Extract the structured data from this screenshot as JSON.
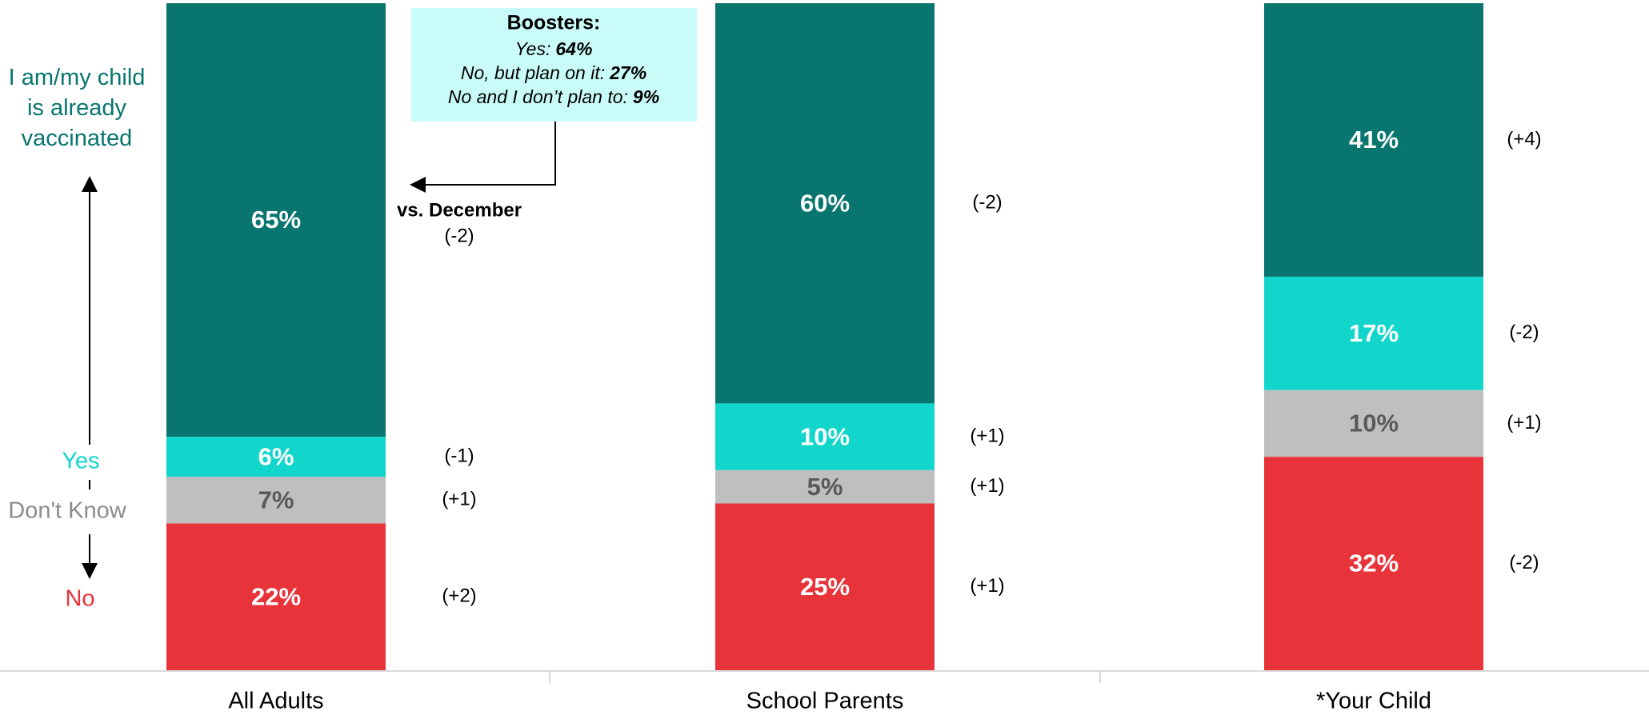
{
  "chart_data": {
    "type": "stacked_bar",
    "categories": [
      "All Adults",
      "School Parents",
      "*Your Child"
    ],
    "ylim": [
      0,
      100
    ],
    "series": [
      {
        "name": "No",
        "color": "#e8333a",
        "label_color": "#ffffff",
        "values": [
          22,
          25,
          32
        ],
        "value_labels": [
          "22%",
          "25%",
          "32%"
        ],
        "change_labels": [
          "(+2)",
          "(+1)",
          "(-2)"
        ]
      },
      {
        "name": "Don't Know",
        "color": "#bfbfbf",
        "label_color": "#595959",
        "values": [
          7,
          5,
          10
        ],
        "value_labels": [
          "7%",
          "5%",
          "10%"
        ],
        "change_labels": [
          "(+1)",
          "(+1)",
          "(+1)"
        ]
      },
      {
        "name": "Yes",
        "color": "#12d6cc",
        "label_color": "#ffffff",
        "values": [
          6,
          10,
          17
        ],
        "value_labels": [
          "6%",
          "10%",
          "17%"
        ],
        "change_labels": [
          "(-1)",
          "(+1)",
          "(-2)"
        ]
      },
      {
        "name": "I am/my child is already vaccinated",
        "color": "#08756f",
        "label_color": "#ffffff",
        "values": [
          65,
          60,
          41
        ],
        "value_labels": [
          "65%",
          "60%",
          "41%"
        ],
        "change_labels": [
          "(-2)",
          "(-2)",
          "(+4)"
        ]
      }
    ],
    "annotations": {
      "box_title": "Boosters:",
      "box_lines": [
        {
          "label": "Yes:",
          "value": "64%"
        },
        {
          "label": "No, but plan on it:",
          "value": "27%"
        },
        {
          "label": "No and I don’t plan to:",
          "value": "9%"
        }
      ],
      "note": "vs. December"
    }
  }
}
